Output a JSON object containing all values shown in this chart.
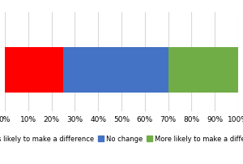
{
  "segments": [
    {
      "label": "Less likely to make a difference",
      "value": 25,
      "color": "#FF0000"
    },
    {
      "label": "No change",
      "value": 45,
      "color": "#4472C4"
    },
    {
      "label": "More likely to make a difference",
      "value": 30,
      "color": "#70AD47"
    }
  ],
  "xlim": [
    0,
    100
  ],
  "xticks": [
    0,
    10,
    20,
    30,
    40,
    50,
    60,
    70,
    80,
    90,
    100
  ],
  "xticklabels": [
    "0%",
    "10%",
    "20%",
    "30%",
    "40%",
    "50%",
    "60%",
    "70%",
    "80%",
    "90%",
    "100%"
  ],
  "background_color": "#FFFFFF",
  "bar_height": 0.55,
  "legend_fontsize": 6.0,
  "tick_fontsize": 6.5
}
